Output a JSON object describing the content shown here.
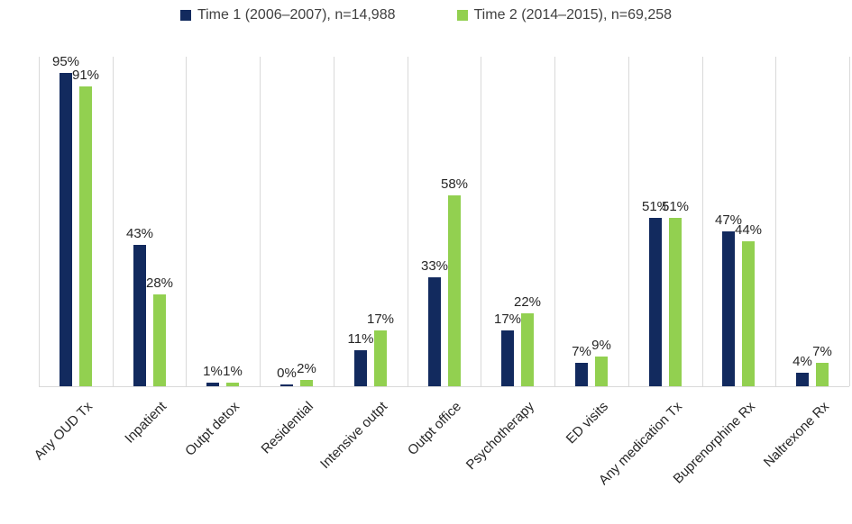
{
  "chart_data": {
    "type": "bar",
    "title": "",
    "xlabel": "",
    "ylabel": "",
    "ylim": [
      0,
      100
    ],
    "value_suffix": "%",
    "grid": "vertical-category-separators-only",
    "legend_position": "top-center",
    "axis_line_color": "#d9d9d9",
    "gridline_color": "#d9d9d9",
    "label_color": "#262626",
    "categories": [
      "Any OUD Tx",
      "Inpatient",
      "Outpt detox",
      "Residential",
      "Intensive outpt",
      "Outpt office",
      "Psychotherapy",
      "ED visits",
      "Any medication Tx",
      "Buprenorphine Rx",
      "Naltrexone Rx"
    ],
    "series": [
      {
        "name": "Time 1 (2006–2007), n=14,988",
        "color": "#122a5e",
        "values": [
          95,
          43,
          1,
          0,
          11,
          33,
          17,
          7,
          51,
          47,
          4
        ]
      },
      {
        "name": "Time 2 (2014–2015), n=69,258",
        "color": "#92d050",
        "values": [
          91,
          28,
          1,
          2,
          17,
          58,
          22,
          9,
          51,
          44,
          7
        ]
      }
    ]
  }
}
